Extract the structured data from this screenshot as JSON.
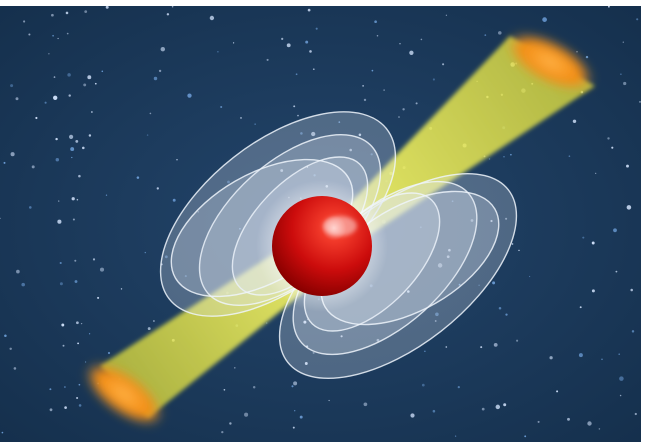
{
  "scene": {
    "subject": "pulsar",
    "colors": {
      "background": "#1b3552",
      "star": "#cfe3ff",
      "neutron_star": "#d01010",
      "beam": "#e6e84a",
      "beam_cap": "#ff9a1f",
      "field_lines": "#dfe9f5"
    }
  }
}
